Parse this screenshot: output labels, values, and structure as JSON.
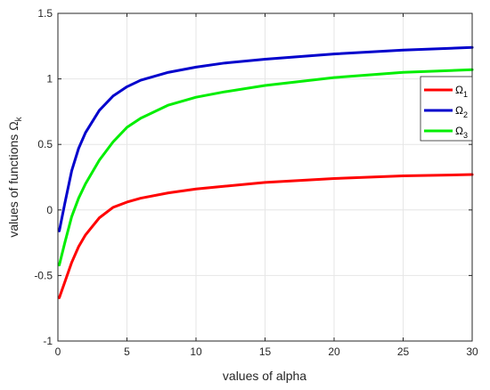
{
  "chart_data": {
    "type": "line",
    "title": "",
    "xlabel": "values of alpha",
    "ylabel": "values of functions Ω",
    "ylabel_subscript": "k",
    "xlim": [
      0,
      30
    ],
    "ylim": [
      -1,
      1.5
    ],
    "x_ticks": [
      0,
      5,
      10,
      15,
      20,
      25,
      30
    ],
    "y_ticks": [
      -1,
      -0.5,
      0,
      0.5,
      1,
      1.5
    ],
    "x_tick_labels": [
      "0",
      "5",
      "10",
      "15",
      "20",
      "25",
      "30"
    ],
    "y_tick_labels": [
      "-1",
      "-0.5",
      "0",
      "0.5",
      "1",
      "1.5"
    ],
    "grid": true,
    "legend_position": "top-right",
    "series": [
      {
        "name": "Ω",
        "subscript": "1",
        "color": "#ff0000",
        "x": [
          0.1,
          0.5,
          1,
          1.5,
          2,
          3,
          4,
          5,
          6,
          8,
          10,
          12,
          15,
          20,
          25,
          30
        ],
        "y": [
          -0.67,
          -0.55,
          -0.4,
          -0.28,
          -0.19,
          -0.06,
          0.02,
          0.06,
          0.09,
          0.13,
          0.16,
          0.18,
          0.21,
          0.24,
          0.26,
          0.27
        ]
      },
      {
        "name": "Ω",
        "subscript": "2",
        "color": "#0000cc",
        "x": [
          0.1,
          0.5,
          1,
          1.5,
          2,
          3,
          4,
          5,
          6,
          8,
          10,
          12,
          15,
          20,
          25,
          30
        ],
        "y": [
          -0.16,
          0.05,
          0.3,
          0.47,
          0.59,
          0.76,
          0.87,
          0.94,
          0.99,
          1.05,
          1.09,
          1.12,
          1.15,
          1.19,
          1.22,
          1.24
        ]
      },
      {
        "name": "Ω",
        "subscript": "3",
        "color": "#00ee00",
        "x": [
          0.1,
          0.5,
          1,
          1.5,
          2,
          3,
          4,
          5,
          6,
          8,
          10,
          12,
          15,
          20,
          25,
          30
        ],
        "y": [
          -0.42,
          -0.25,
          -0.05,
          0.09,
          0.2,
          0.38,
          0.52,
          0.63,
          0.7,
          0.8,
          0.86,
          0.9,
          0.95,
          1.01,
          1.05,
          1.07
        ]
      }
    ]
  }
}
